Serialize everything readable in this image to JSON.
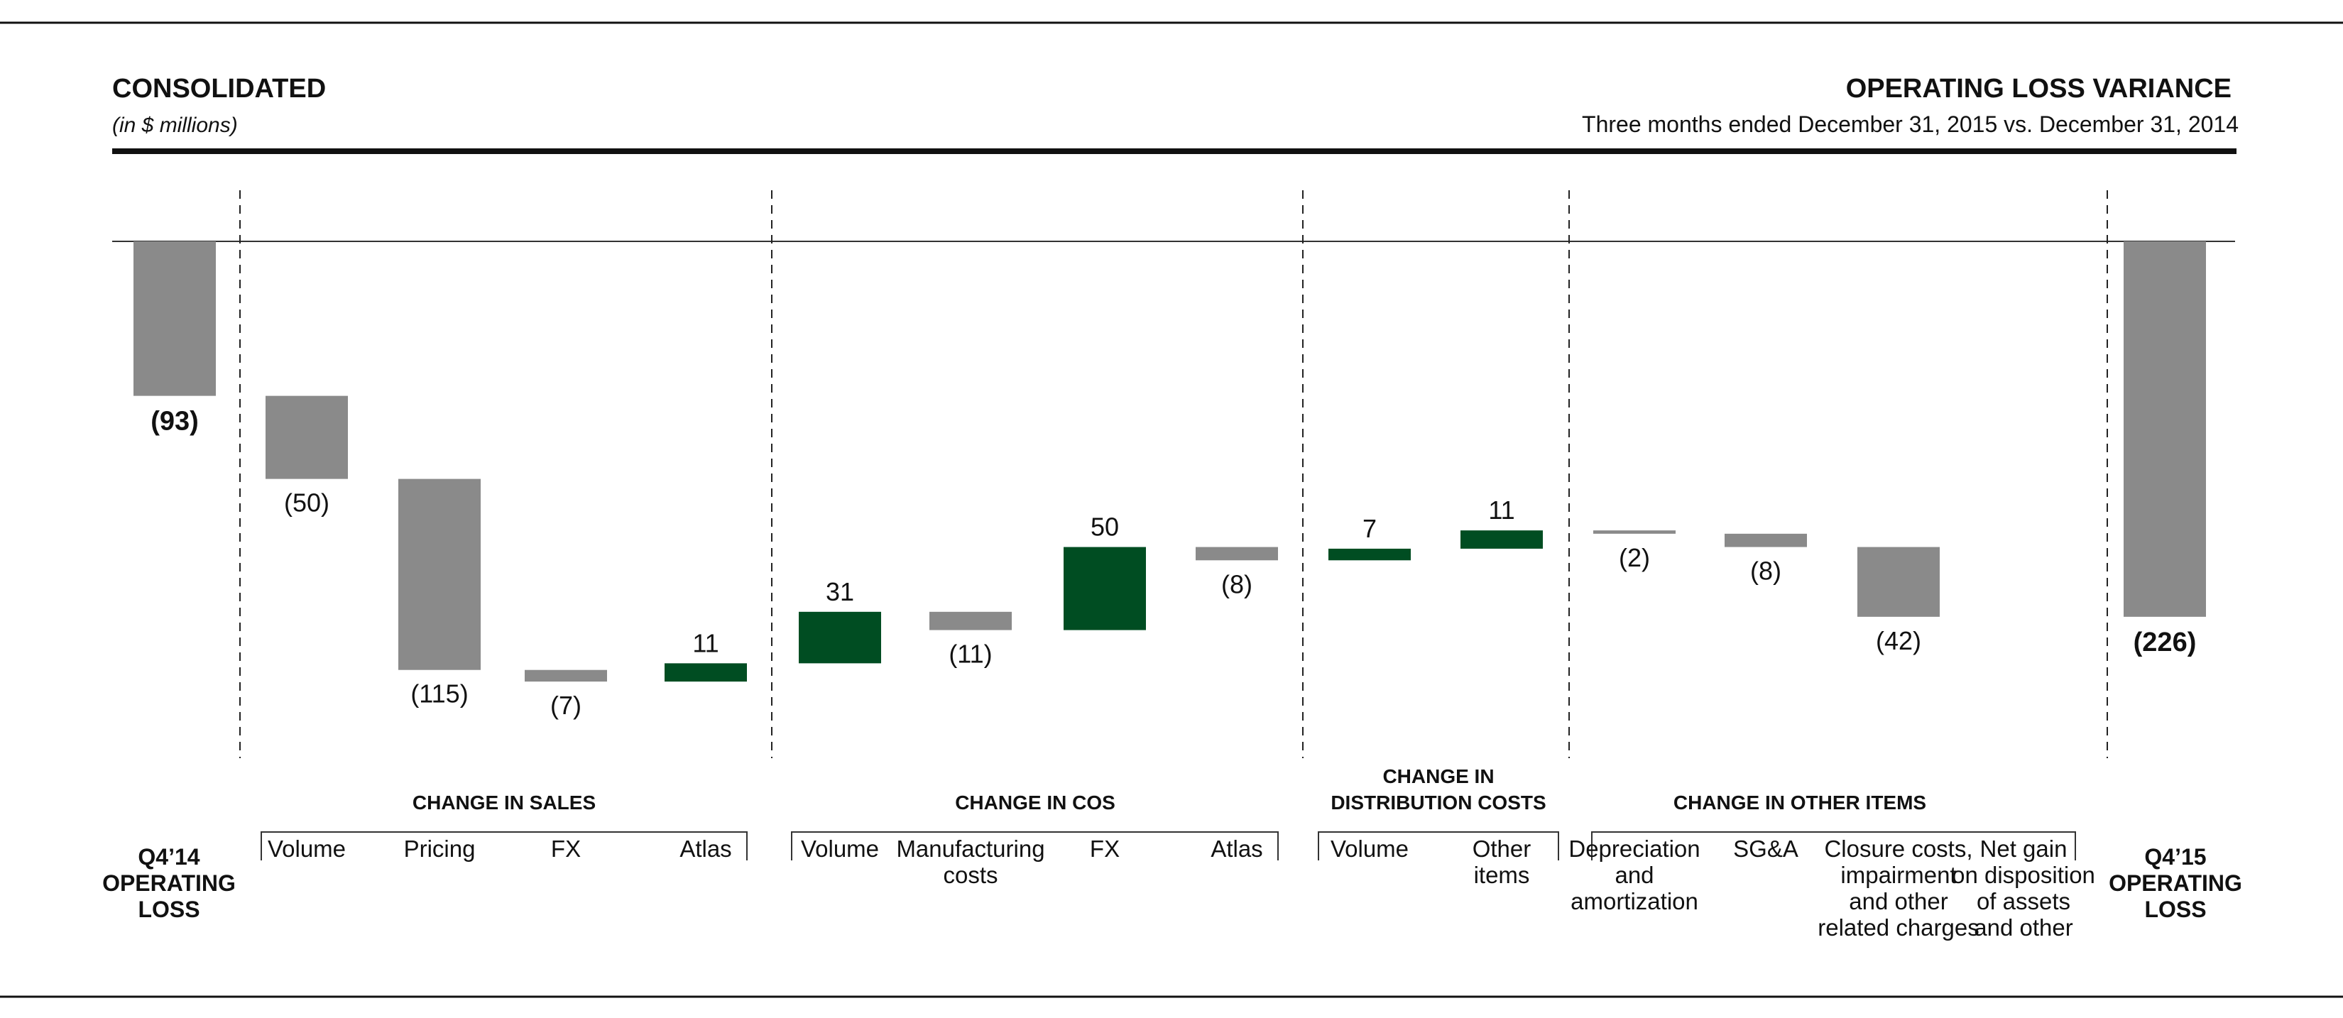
{
  "header": {
    "left_title": "CONSOLIDATED",
    "left_subtitle": "(in $ millions)",
    "right_title": "OPERATING LOSS VARIANCE",
    "right_subtitle": "Three months ended December 31, 2015 vs. December 31, 2014"
  },
  "colors": {
    "negative": "#8a8a8a",
    "positive": "#004d22",
    "text": "#111111"
  },
  "chart_data": {
    "type": "bar",
    "subtype": "waterfall",
    "unit": "$ millions",
    "start": {
      "label": [
        "Q4’14",
        "OPERATING",
        "LOSS"
      ],
      "value": -93,
      "data_label": "(93)"
    },
    "end": {
      "label": [
        "Q4’15",
        "OPERATING",
        "LOSS"
      ],
      "value": -226,
      "data_label": "(226)"
    },
    "groups": [
      {
        "title": [
          "CHANGE IN SALES"
        ],
        "items": [
          {
            "label": [
              "Volume"
            ],
            "value": -50,
            "data_label": "(50)"
          },
          {
            "label": [
              "Pricing"
            ],
            "value": -115,
            "data_label": "(115)"
          },
          {
            "label": [
              "FX"
            ],
            "value": -7,
            "data_label": "(7)"
          },
          {
            "label": [
              "Atlas"
            ],
            "value": 11,
            "data_label": "11"
          }
        ]
      },
      {
        "title": [
          "CHANGE IN COS"
        ],
        "items": [
          {
            "label": [
              "Volume"
            ],
            "value": 31,
            "data_label": "31"
          },
          {
            "label": [
              "Manufacturing",
              "costs"
            ],
            "value": -11,
            "data_label": "(11)"
          },
          {
            "label": [
              "FX"
            ],
            "value": 50,
            "data_label": "50"
          },
          {
            "label": [
              "Atlas"
            ],
            "value": -8,
            "data_label": "(8)"
          }
        ]
      },
      {
        "title": [
          "CHANGE IN",
          "DISTRIBUTION COSTS"
        ],
        "items": [
          {
            "label": [
              "Volume"
            ],
            "value": 7,
            "data_label": "7"
          },
          {
            "label": [
              "Other",
              "items"
            ],
            "value": 11,
            "data_label": "11"
          }
        ]
      },
      {
        "title": [
          "CHANGE IN OTHER ITEMS"
        ],
        "items": [
          {
            "label": [
              "Depreciation",
              "and",
              "amortization"
            ],
            "value": -2,
            "data_label": "(2)"
          },
          {
            "label": [
              "SG&A"
            ],
            "value": -8,
            "data_label": "(8)"
          },
          {
            "label": [
              "Closure costs,",
              "impairment",
              "and other",
              "related charges"
            ],
            "value": -42,
            "data_label": "(42)"
          },
          {
            "label": [
              "Net gain",
              "on disposition",
              "of assets",
              "and other"
            ],
            "value": 0,
            "data_label": ""
          }
        ]
      }
    ],
    "ylim": [
      -250,
      0
    ],
    "grid": false,
    "legend": "none"
  }
}
